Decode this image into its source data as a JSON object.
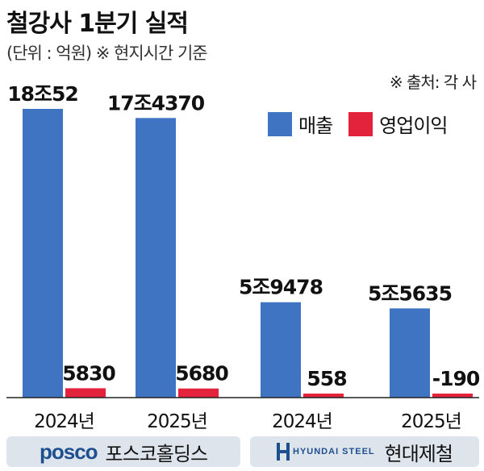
{
  "header": {
    "title": "철강사 1분기 실적",
    "subtitle": "(단위 : 억원) ※ 현지시간 기준",
    "source": "※ 출처: 각 사"
  },
  "legend": {
    "revenue_label": "매출",
    "op_profit_label": "영업이익"
  },
  "companies": [
    {
      "name": "포스코홀딩스",
      "logo_text": "posco"
    },
    {
      "name": "현대제철",
      "logo_text": "HYUNDAI STEEL"
    }
  ],
  "colors": {
    "revenue": "#3f74c2",
    "op_profit": "#e3233c",
    "company_band": "#dde4ec",
    "axis": "#222222"
  },
  "chart_data": {
    "type": "bar",
    "title": "철강사 1분기 실적",
    "unit": "억원",
    "categories": [
      "2024년",
      "2025년",
      "2024년",
      "2025년"
    ],
    "groups": [
      "포스코홀딩스",
      "포스코홀딩스",
      "현대제철",
      "현대제철"
    ],
    "series": [
      {
        "name": "매출",
        "values": [
          180052,
          174370,
          59478,
          55635
        ],
        "labels": [
          "18조52",
          "17조4370",
          "5조9478",
          "5조5635"
        ]
      },
      {
        "name": "영업이익",
        "values": [
          5830,
          5680,
          558,
          -190
        ],
        "labels": [
          "5830",
          "5680",
          "558",
          "-190"
        ]
      }
    ]
  }
}
